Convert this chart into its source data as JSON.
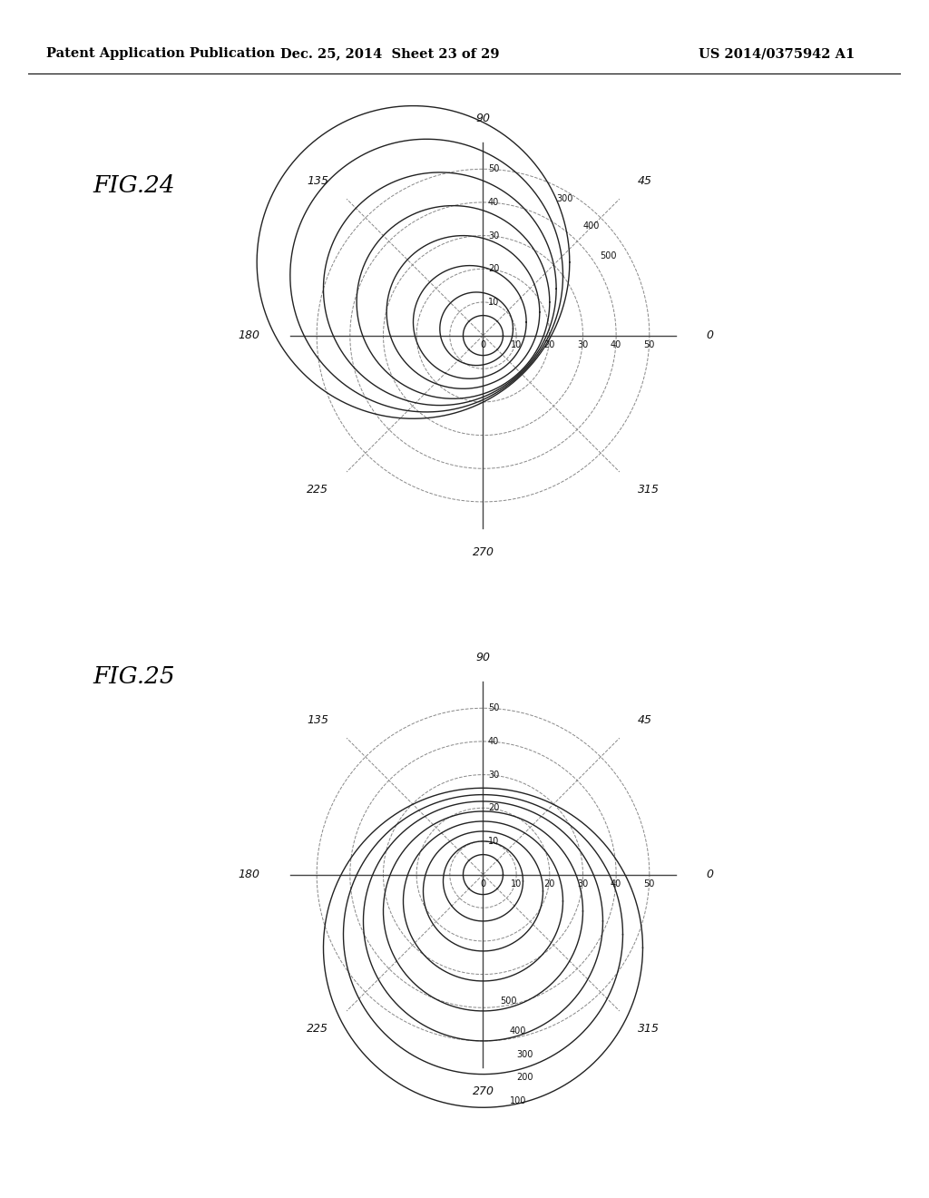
{
  "header_left": "Patent Application Publication",
  "header_center": "Dec. 25, 2014  Sheet 23 of 29",
  "header_right": "US 2014/0375942 A1",
  "fig24_label": "FIG.24",
  "fig25_label": "FIG.25",
  "radial_ticks": [
    10,
    20,
    30,
    40,
    50
  ],
  "angle_labels_deg": [
    0,
    45,
    90,
    135,
    180,
    225,
    270,
    315
  ],
  "background_color": "#ffffff",
  "line_color": "#444444",
  "text_color": "#111111",
  "grid_color": "#888888",
  "curve_color": "#222222",
  "fig24_curve_centers": [
    [
      0,
      0,
      6
    ],
    [
      -2,
      2,
      11
    ],
    [
      -4,
      4,
      17
    ],
    [
      -6,
      7,
      23
    ],
    [
      -9,
      10,
      29
    ],
    [
      -13,
      14,
      35
    ],
    [
      -17,
      18,
      41
    ],
    [
      -21,
      22,
      47
    ]
  ],
  "fig24_data_labels": [
    [
      "300",
      22,
      41
    ],
    [
      "400",
      30,
      33
    ],
    [
      "500",
      35,
      24
    ]
  ],
  "fig25_curve_centers": [
    [
      0,
      0,
      6
    ],
    [
      0,
      -2,
      12
    ],
    [
      0,
      -5,
      18
    ],
    [
      0,
      -8,
      24
    ],
    [
      0,
      -11,
      30
    ],
    [
      0,
      -14,
      36
    ],
    [
      0,
      -18,
      42
    ],
    [
      0,
      -22,
      48
    ]
  ],
  "fig25_data_labels": [
    [
      "500",
      5,
      -38
    ],
    [
      "400",
      8,
      -47
    ],
    [
      "300",
      10,
      -54
    ],
    [
      "200",
      10,
      -61
    ],
    [
      "100",
      8,
      -68
    ]
  ]
}
